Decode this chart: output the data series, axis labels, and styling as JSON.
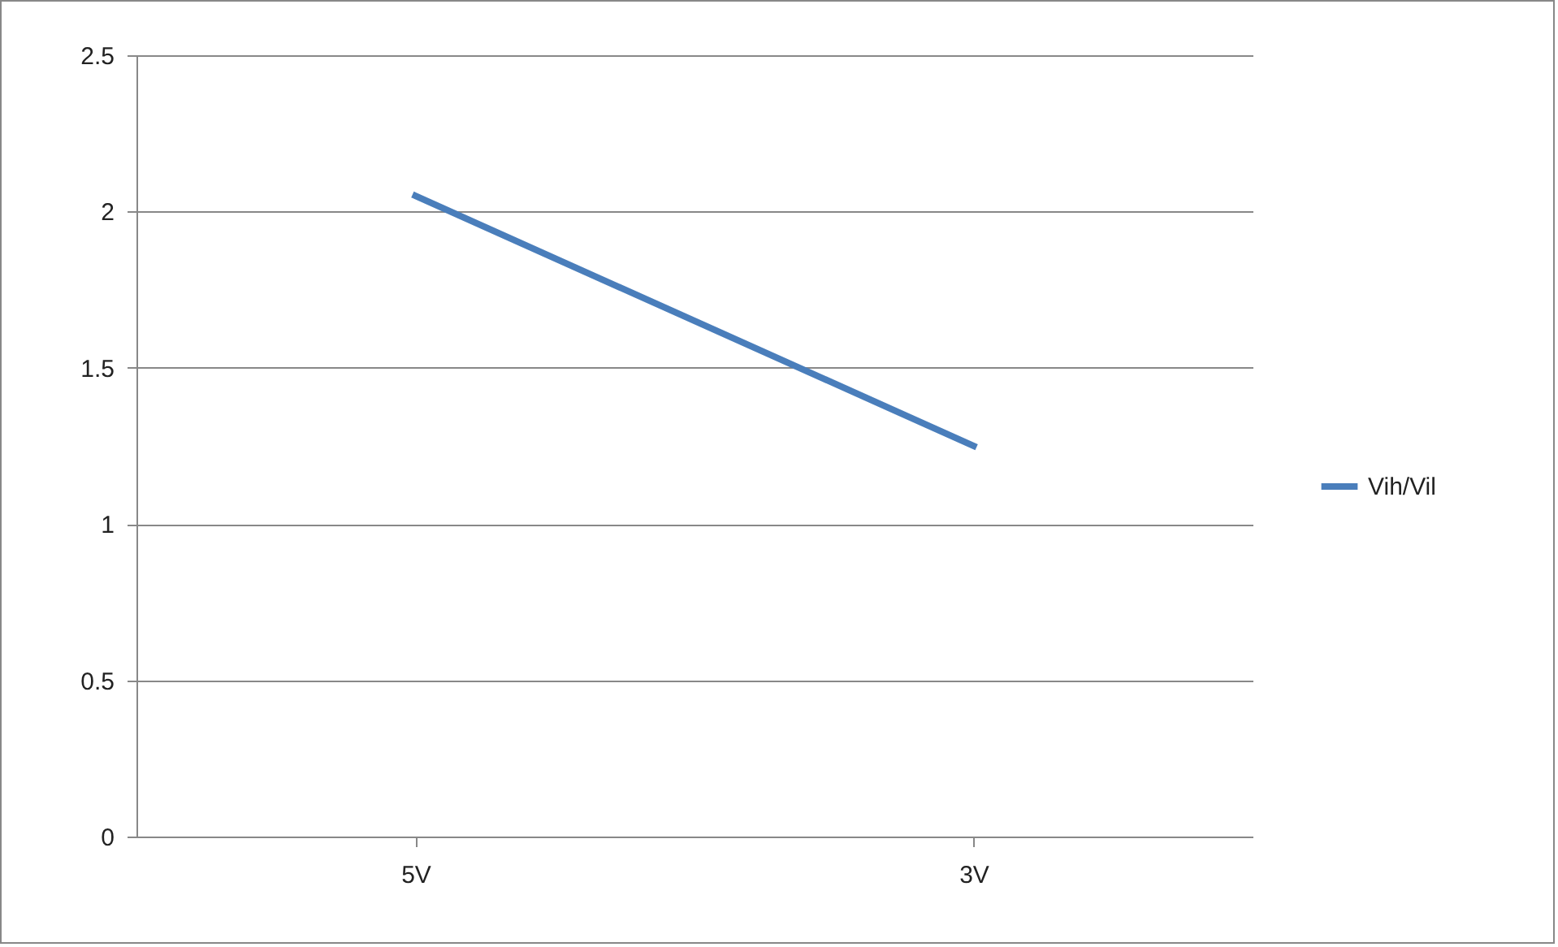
{
  "chart_data": {
    "type": "line",
    "categories": [
      "5V",
      "3V"
    ],
    "series": [
      {
        "name": "Vih/Vil",
        "color": "#4a7ebb",
        "values": [
          2.05,
          1.25
        ]
      }
    ],
    "ylim": [
      0,
      2.5
    ],
    "yticks": [
      0,
      0.5,
      1,
      1.5,
      2,
      2.5
    ],
    "grid": "y",
    "legend": "right",
    "marker": "none",
    "line_style": "solid"
  }
}
